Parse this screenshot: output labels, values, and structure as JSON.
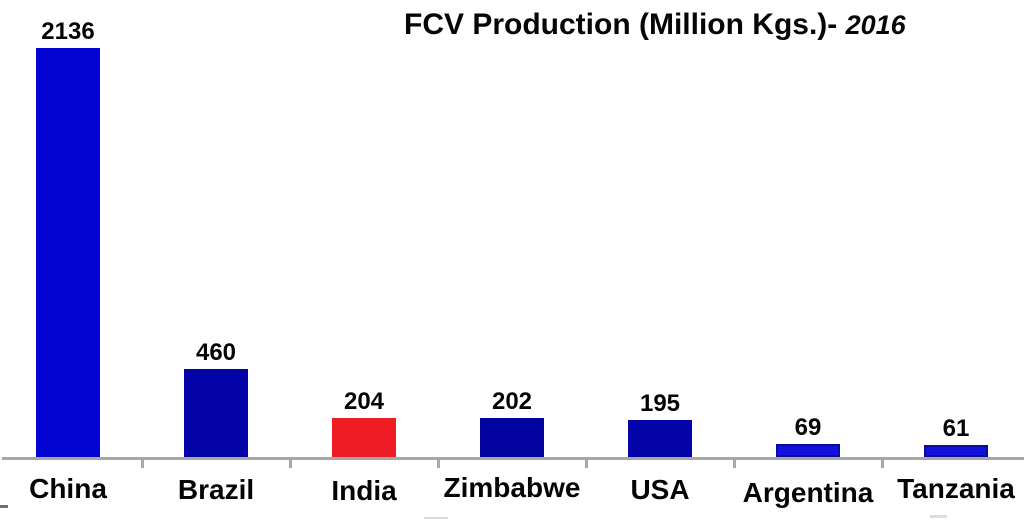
{
  "title": {
    "main": "FCV Production (Million Kgs.)",
    "separator": "- ",
    "year": "2016"
  },
  "chart_data": {
    "type": "bar",
    "title": "FCV Production (Million Kgs.)- 2016",
    "year": "2016",
    "unit": "Million Kgs.",
    "categories": [
      "China",
      "Brazil",
      "India",
      "Zimbabwe",
      "USA",
      "Argentina",
      "Tanzania"
    ],
    "values": [
      2136,
      460,
      204,
      202,
      195,
      69,
      61
    ],
    "value_labels_shown": true,
    "bar_colors": [
      "#0404d2",
      "#0404a8",
      "#ee1c25",
      "#03039f",
      "#0404a8",
      "#1212dc",
      "#1212dc"
    ],
    "bar_borders": [
      null,
      null,
      null,
      null,
      null,
      "#0c0c96",
      "#0c0c96"
    ],
    "highlight_category": "India",
    "highlight_color": "#ee1c25",
    "axis_line_color": "#a7a7a7",
    "text_color": "#050505",
    "background_color": "#ffffff",
    "xlabel": "",
    "ylabel": "",
    "ylim": [
      0,
      2136
    ],
    "grid": false,
    "legend": false
  }
}
